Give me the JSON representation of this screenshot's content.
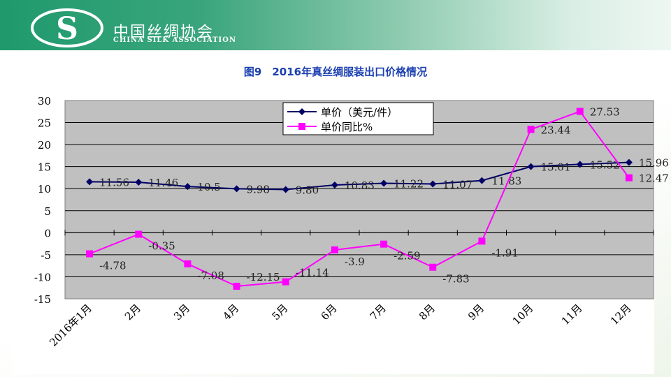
{
  "header": {
    "org_cn": "中国丝绸协会",
    "org_en": "CHINA SILK ASSOCIATION",
    "logo_mark": "S"
  },
  "chart_data": {
    "type": "line",
    "title": "图9　2016年真丝绸服装出口价格情况",
    "categories": [
      "2016年1月",
      "2月",
      "3月",
      "4月",
      "5月",
      "6月",
      "7月",
      "8月",
      "9月",
      "10月",
      "11月",
      "12月"
    ],
    "series": [
      {
        "name": "单价（美元/件）",
        "color": "#000066",
        "marker": "diamond",
        "values": [
          11.56,
          11.46,
          10.5,
          9.98,
          9.8,
          10.83,
          11.22,
          11.07,
          11.83,
          15.01,
          15.52,
          15.96
        ],
        "labels": [
          "11.56",
          "11.46",
          "10.5",
          "9.98",
          "9.80",
          "10.83",
          "11.22",
          "11.07",
          "11.83",
          "15.01",
          "15.52",
          "15.96"
        ]
      },
      {
        "name": "单价同比%",
        "color": "#ff00ff",
        "marker": "square",
        "values": [
          -4.78,
          -0.35,
          -7.08,
          -12.15,
          -11.14,
          -3.9,
          -2.59,
          -7.83,
          -1.91,
          23.44,
          27.53,
          12.47
        ],
        "labels": [
          "-4.78",
          "-0.35",
          "-7.08",
          "-12.15",
          "-11.14",
          "-3.9",
          "-2.59",
          "-7.83",
          "-1.91",
          "23.44",
          "27.53",
          "12.47"
        ]
      }
    ],
    "ylim": [
      -15,
      30
    ],
    "yticks": [
      -15,
      -10,
      -5,
      0,
      5,
      10,
      15,
      20,
      25,
      30
    ],
    "grid": true,
    "legend": "top-center",
    "xlabel": "",
    "ylabel": ""
  }
}
